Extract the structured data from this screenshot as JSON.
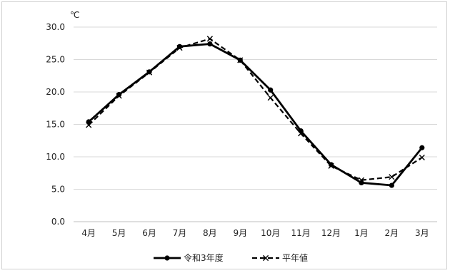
{
  "chart_data": {
    "type": "line",
    "unit_label": "℃",
    "categories": [
      "4月",
      "5月",
      "6月",
      "7月",
      "8月",
      "9月",
      "10月",
      "11月",
      "12月",
      "1月",
      "2月",
      "3月"
    ],
    "ylim": [
      0,
      30
    ],
    "yticks": [
      0,
      5,
      10,
      15,
      20,
      25,
      30
    ],
    "ytick_labels": [
      "0.0",
      "5.0",
      "10.0",
      "15.0",
      "20.0",
      "25.0",
      "30.0"
    ],
    "grid": true,
    "legend_position": "bottom",
    "series": [
      {
        "name": "令和3年度",
        "style": "solid",
        "marker": "circle",
        "color": "#000000",
        "values": [
          15.4,
          19.6,
          23.1,
          27.0,
          27.4,
          24.9,
          20.3,
          14.0,
          8.8,
          6.0,
          5.6,
          11.4
        ]
      },
      {
        "name": "平年値",
        "style": "dashed",
        "marker": "x",
        "color": "#000000",
        "values": [
          14.9,
          19.4,
          23.0,
          26.8,
          28.2,
          24.9,
          19.1,
          13.6,
          8.6,
          6.4,
          6.9,
          9.9
        ]
      }
    ]
  }
}
